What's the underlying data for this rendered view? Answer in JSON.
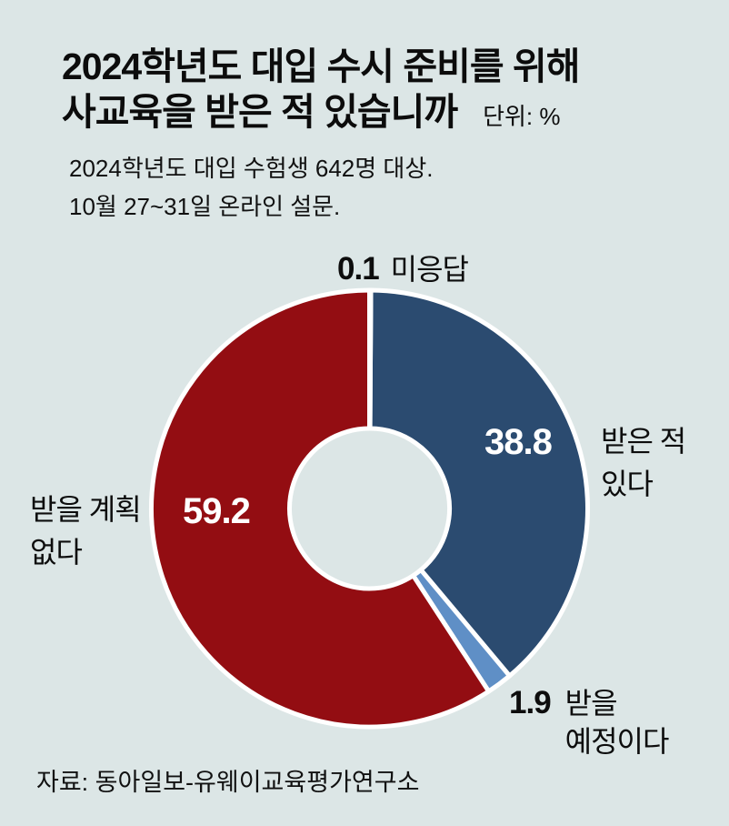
{
  "header": {
    "title_line1": "2024학년도 대입 수시 준비를 위해",
    "title_line2": "사교육을 받은 적 있습니까",
    "unit_label": "단위: %",
    "subtitle_line1": "2024학년도 대입 수험생 642명 대상.",
    "subtitle_line2": "10월 27~31일 온라인 설문."
  },
  "chart_data": {
    "type": "pie",
    "subtype": "donut",
    "title": "2024학년도 대입 수시 준비를 위해 사교육을 받은 적 있습니까",
    "unit": "%",
    "start_angle_deg": 0,
    "direction": "clockwise",
    "total": 100.0,
    "segments": [
      {
        "id": "no-answer",
        "label": "미응답",
        "value": 0.1,
        "color": "#ffffff"
      },
      {
        "id": "received",
        "label": "받은 적 있다",
        "value": 38.8,
        "color": "#2b4b70"
      },
      {
        "id": "will-receive",
        "label": "받을 예정이다",
        "value": 1.9,
        "color": "#5f8fc6"
      },
      {
        "id": "no-plan",
        "label": "받을 계획 없다",
        "value": 59.2,
        "color": "#930d12"
      }
    ]
  },
  "callouts": {
    "top": {
      "text": "미응답"
    },
    "right": {
      "line1": "받은 적",
      "line2": "있다"
    },
    "left": {
      "line1": "받을 계획",
      "line2": "없다"
    },
    "bottom": {
      "line1": "받을",
      "line2": "예정이다"
    }
  },
  "source": "자료: 동아일보-유웨이교육평가연구소",
  "colors": {
    "background": "#dce6e6",
    "text": "#0d0d0d",
    "value_text_on_slice": "#ffffff",
    "separator": "#ffffff",
    "segment_received": "#2b4b70",
    "segment_will_receive": "#5f8fc6",
    "segment_no_plan": "#930d12",
    "segment_no_answer": "#ffffff"
  }
}
